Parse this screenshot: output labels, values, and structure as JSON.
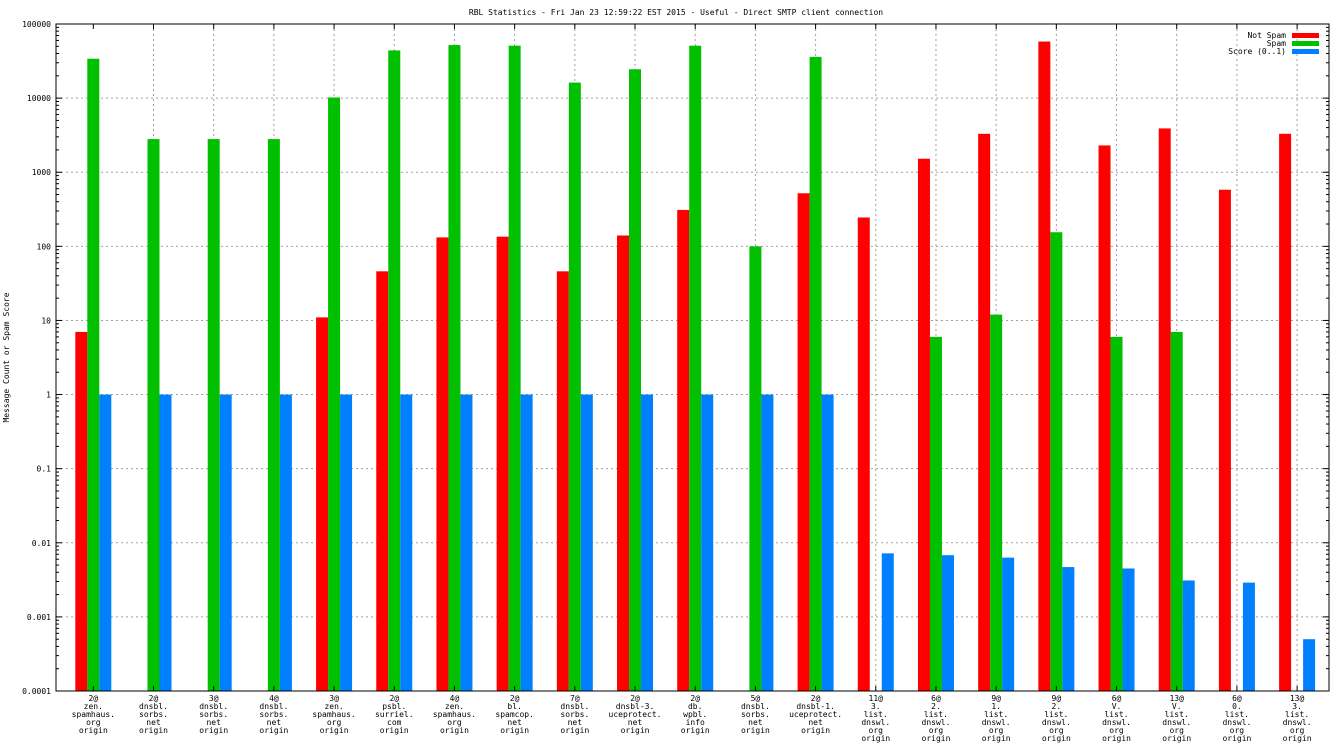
{
  "chart_data": {
    "type": "bar",
    "title": "RBL Statistics - Fri Jan 23 12:59:22 EST 2015 - Useful - Direct SMTP client connection",
    "ylabel": "Message Count or Spam Score",
    "xlabel": "",
    "yscale": "log",
    "ylim": [
      0.0001,
      100000
    ],
    "yticks": [
      "0.0001",
      "0.001",
      "0.01",
      "0.1",
      "1",
      "10",
      "100",
      "1000",
      "10000",
      "100000"
    ],
    "grid": true,
    "legend_position": "top-right",
    "categories": [
      [
        "2@",
        "zen.",
        "spamhaus.",
        "org",
        "origin"
      ],
      [
        "2@",
        "dnsbl.",
        "sorbs.",
        "net",
        "origin"
      ],
      [
        "3@",
        "dnsbl.",
        "sorbs.",
        "net",
        "origin"
      ],
      [
        "4@",
        "dnsbl.",
        "sorbs.",
        "net",
        "origin"
      ],
      [
        "3@",
        "zen.",
        "spamhaus.",
        "org",
        "origin"
      ],
      [
        "2@",
        "psbl.",
        "surriel.",
        "com",
        "origin"
      ],
      [
        "4@",
        "zen.",
        "spamhaus.",
        "org",
        "origin"
      ],
      [
        "2@",
        "bl.",
        "spamcop.",
        "net",
        "origin"
      ],
      [
        "7@",
        "dnsbl.",
        "sorbs.",
        "net",
        "origin"
      ],
      [
        "2@",
        "dnsbl-3.",
        "uceprotect.",
        "net",
        "origin"
      ],
      [
        "2@",
        "db.",
        "wpbl.",
        "info",
        "origin"
      ],
      [
        "5@",
        "dnsbl.",
        "sorbs.",
        "net",
        "origin"
      ],
      [
        "2@",
        "dnsbl-1.",
        "uceprotect.",
        "net",
        "origin"
      ],
      [
        "11@",
        "3.",
        "list.",
        "dnswl.",
        "org",
        "origin"
      ],
      [
        "6@",
        "2.",
        "list.",
        "dnswl.",
        "org",
        "origin"
      ],
      [
        "9@",
        "1.",
        "list.",
        "dnswl.",
        "org",
        "origin"
      ],
      [
        "9@",
        "2.",
        "list.",
        "dnswl.",
        "org",
        "origin"
      ],
      [
        "6@",
        "V.",
        "list.",
        "dnswl.",
        "org",
        "origin"
      ],
      [
        "13@",
        "V.",
        "list.",
        "dnswl.",
        "org",
        "origin"
      ],
      [
        "6@",
        "0.",
        "list.",
        "dnswl.",
        "org",
        "origin"
      ],
      [
        "13@",
        "3.",
        "list.",
        "dnswl.",
        "org",
        "origin"
      ]
    ],
    "series": [
      {
        "name": "Not Spam",
        "color": "#ff0000",
        "values": [
          7,
          null,
          null,
          null,
          11,
          46,
          132,
          135,
          46,
          140,
          310,
          null,
          520,
          245,
          1520,
          3300,
          58000,
          2300,
          3900,
          580,
          3300
        ]
      },
      {
        "name": "Spam",
        "color": "#00c000",
        "values": [
          34000,
          2800,
          2800,
          2800,
          10200,
          44000,
          52000,
          51000,
          16200,
          24500,
          51000,
          100,
          36000,
          null,
          6,
          12,
          155,
          6,
          7,
          null,
          null
        ]
      },
      {
        "name": "Score (0..1)",
        "color": "#0080ff",
        "values": [
          1,
          1,
          1,
          1,
          1,
          1,
          1,
          1,
          1,
          1,
          1,
          1,
          1,
          0.0072,
          0.0068,
          0.0063,
          0.0047,
          0.0045,
          0.0031,
          0.0029,
          0.0005
        ]
      }
    ]
  }
}
